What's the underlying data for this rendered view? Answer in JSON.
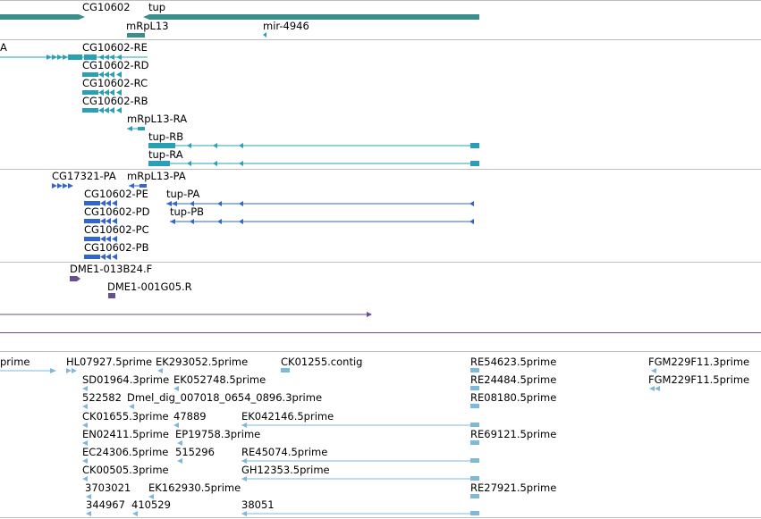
{
  "colors": {
    "gene": "#3a8f8a",
    "transcript": "#2aa0b8",
    "protein": "#3366cc",
    "clone": "#6a4c93",
    "est": "#7fb8dd",
    "separator": "#bfbfbf"
  },
  "gene_track": {
    "genes": [
      "CG10602",
      "tup",
      "mRpL13",
      "mir-4946"
    ]
  },
  "transcript_track": {
    "left_partial": "A",
    "transcripts": [
      "CG10602-RE",
      "CG10602-RD",
      "CG10602-RC",
      "CG10602-RB",
      "mRpL13-RA",
      "tup-RB",
      "tup-RA"
    ]
  },
  "protein_track": {
    "proteins": [
      "CG17321-PA",
      "mRpL13-PA",
      "CG10602-PE",
      "tup-PA",
      "CG10602-PD",
      "tup-PB",
      "CG10602-PC",
      "CG10602-PB"
    ]
  },
  "clone_track": {
    "clones": [
      "DME1-013B24.F",
      "DME1-001G05.R"
    ]
  },
  "est_track": {
    "labels": [
      "prime",
      "HL07927.5prime",
      "EK293052.5prime",
      "CK01255.contig",
      "RE54623.5prime",
      "FGM229F11.3prime",
      "SD01964.3prime",
      "EK052748.5prime",
      "RE24484.5prime",
      "FGM229F11.5prime",
      "522582",
      "Dmel_dig_007018_0654_0896.3prime",
      "RE08180.5prime",
      "CK01655.3prime",
      "47889",
      "EK042146.5prime",
      "EN02411.5prime",
      "EP19758.3prime",
      "RE69121.5prime",
      "EC24306.5prime",
      "515296",
      "RE45074.5prime",
      "CK00505.3prime",
      "GH12353.5prime",
      "3703021",
      "EK162930.5prime",
      "RE27921.5prime",
      "344967",
      "410529",
      "38051"
    ]
  }
}
